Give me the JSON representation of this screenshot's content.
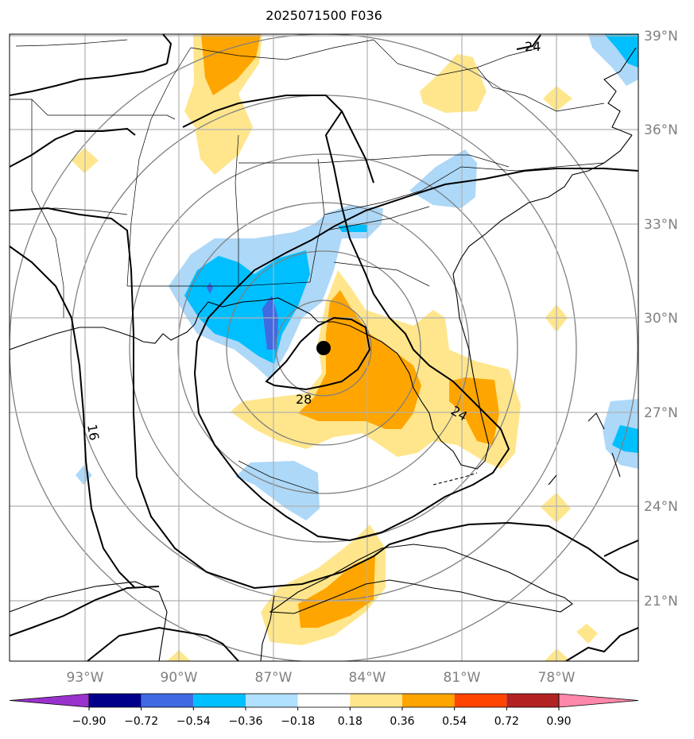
{
  "title": "2025071500 F036",
  "map": {
    "lat_labels": [
      "39°N",
      "36°N",
      "33°N",
      "30°N",
      "27°N",
      "24°N",
      "21°N"
    ],
    "lon_labels": [
      "93°W",
      "90°W",
      "87°W",
      "84°W",
      "81°W",
      "78°W"
    ],
    "contour_labels": [
      "24",
      "16",
      "28",
      "24"
    ],
    "storm_center": {
      "lat": 29.1,
      "lon": -85.4
    },
    "range_ring_color": "#808080",
    "contour_color": "#000000"
  },
  "colorbar": {
    "tick_labels": [
      "−0.90",
      "−0.72",
      "−0.54",
      "−0.36",
      "−0.18",
      "0.18",
      "0.36",
      "0.54",
      "0.72",
      "0.90"
    ],
    "colors": [
      "#9932cc",
      "#00008b",
      "#4169e1",
      "#00bfff",
      "#b0e0ff",
      "#ffffff",
      "#ffe68c",
      "#ffa500",
      "#ff4500",
      "#b22222",
      "#ff88aa"
    ]
  },
  "colors": {
    "light_blue": "#add8f8",
    "blue": "#00bfff",
    "royal_blue": "#4169e1",
    "light_yellow": "#ffe68c",
    "orange": "#ffa500"
  }
}
